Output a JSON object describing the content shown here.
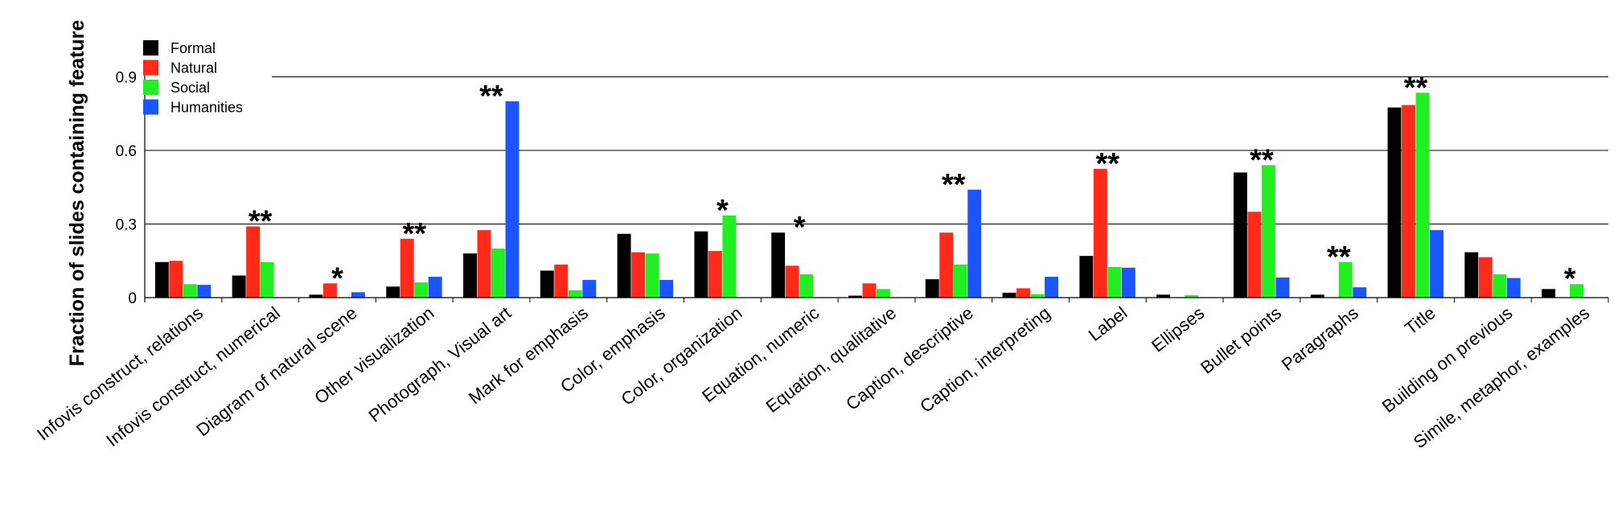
{
  "chart_data": {
    "type": "bar",
    "title": "",
    "xlabel": "",
    "ylabel": "Fraction of slides containing feature",
    "ylim": [
      0,
      0.9
    ],
    "yticks": [
      0,
      0.3,
      0.6,
      0.9
    ],
    "ytick_labels": [
      "0",
      "0.3",
      "0.6",
      "0.9"
    ],
    "grid": true,
    "legend_position": "top-left",
    "categories": [
      "Infovis construct, relations",
      "Infovis construct, numerical",
      "Diagram of natural scene",
      "Other visualization",
      "Photograph, Visual art",
      "Mark for emphasis",
      "Color, emphasis",
      "Color, organization",
      "Equation, numeric",
      "Equation, qualitative",
      "Caption, descriptive",
      "Caption, interpreting",
      "Label",
      "Ellipses",
      "Bullet points",
      "Paragraphs",
      "Title",
      "Building on previous",
      "Simile, metaphor, examples"
    ],
    "series": [
      {
        "name": "Formal",
        "color": "#000000",
        "values": [
          0.145,
          0.09,
          0.012,
          0.045,
          0.18,
          0.11,
          0.26,
          0.27,
          0.265,
          0.008,
          0.075,
          0.02,
          0.17,
          0.012,
          0.51,
          0.012,
          0.775,
          0.185,
          0.035
        ]
      },
      {
        "name": "Natural",
        "color": "#ff2a1a",
        "values": [
          0.15,
          0.29,
          0.058,
          0.24,
          0.275,
          0.135,
          0.185,
          0.19,
          0.13,
          0.058,
          0.265,
          0.038,
          0.525,
          0.0,
          0.35,
          0.0,
          0.785,
          0.165,
          0.0
        ]
      },
      {
        "name": "Social",
        "color": "#22ee22",
        "values": [
          0.055,
          0.145,
          0.0,
          0.062,
          0.2,
          0.03,
          0.18,
          0.335,
          0.095,
          0.035,
          0.135,
          0.014,
          0.125,
          0.01,
          0.54,
          0.145,
          0.835,
          0.095,
          0.055
        ]
      },
      {
        "name": "Humanities",
        "color": "#1a55ff",
        "values": [
          0.052,
          0.0,
          0.022,
          0.085,
          0.8,
          0.072,
          0.072,
          0.0,
          0.0,
          0.0,
          0.44,
          0.085,
          0.122,
          0.0,
          0.082,
          0.042,
          0.275,
          0.08,
          0.0
        ]
      }
    ],
    "annotations": [
      "",
      "**",
      "*",
      "**",
      "**",
      "",
      "",
      "*",
      "*",
      "",
      "**",
      "",
      "**",
      "",
      "**",
      "**",
      "**",
      "",
      "*"
    ]
  }
}
